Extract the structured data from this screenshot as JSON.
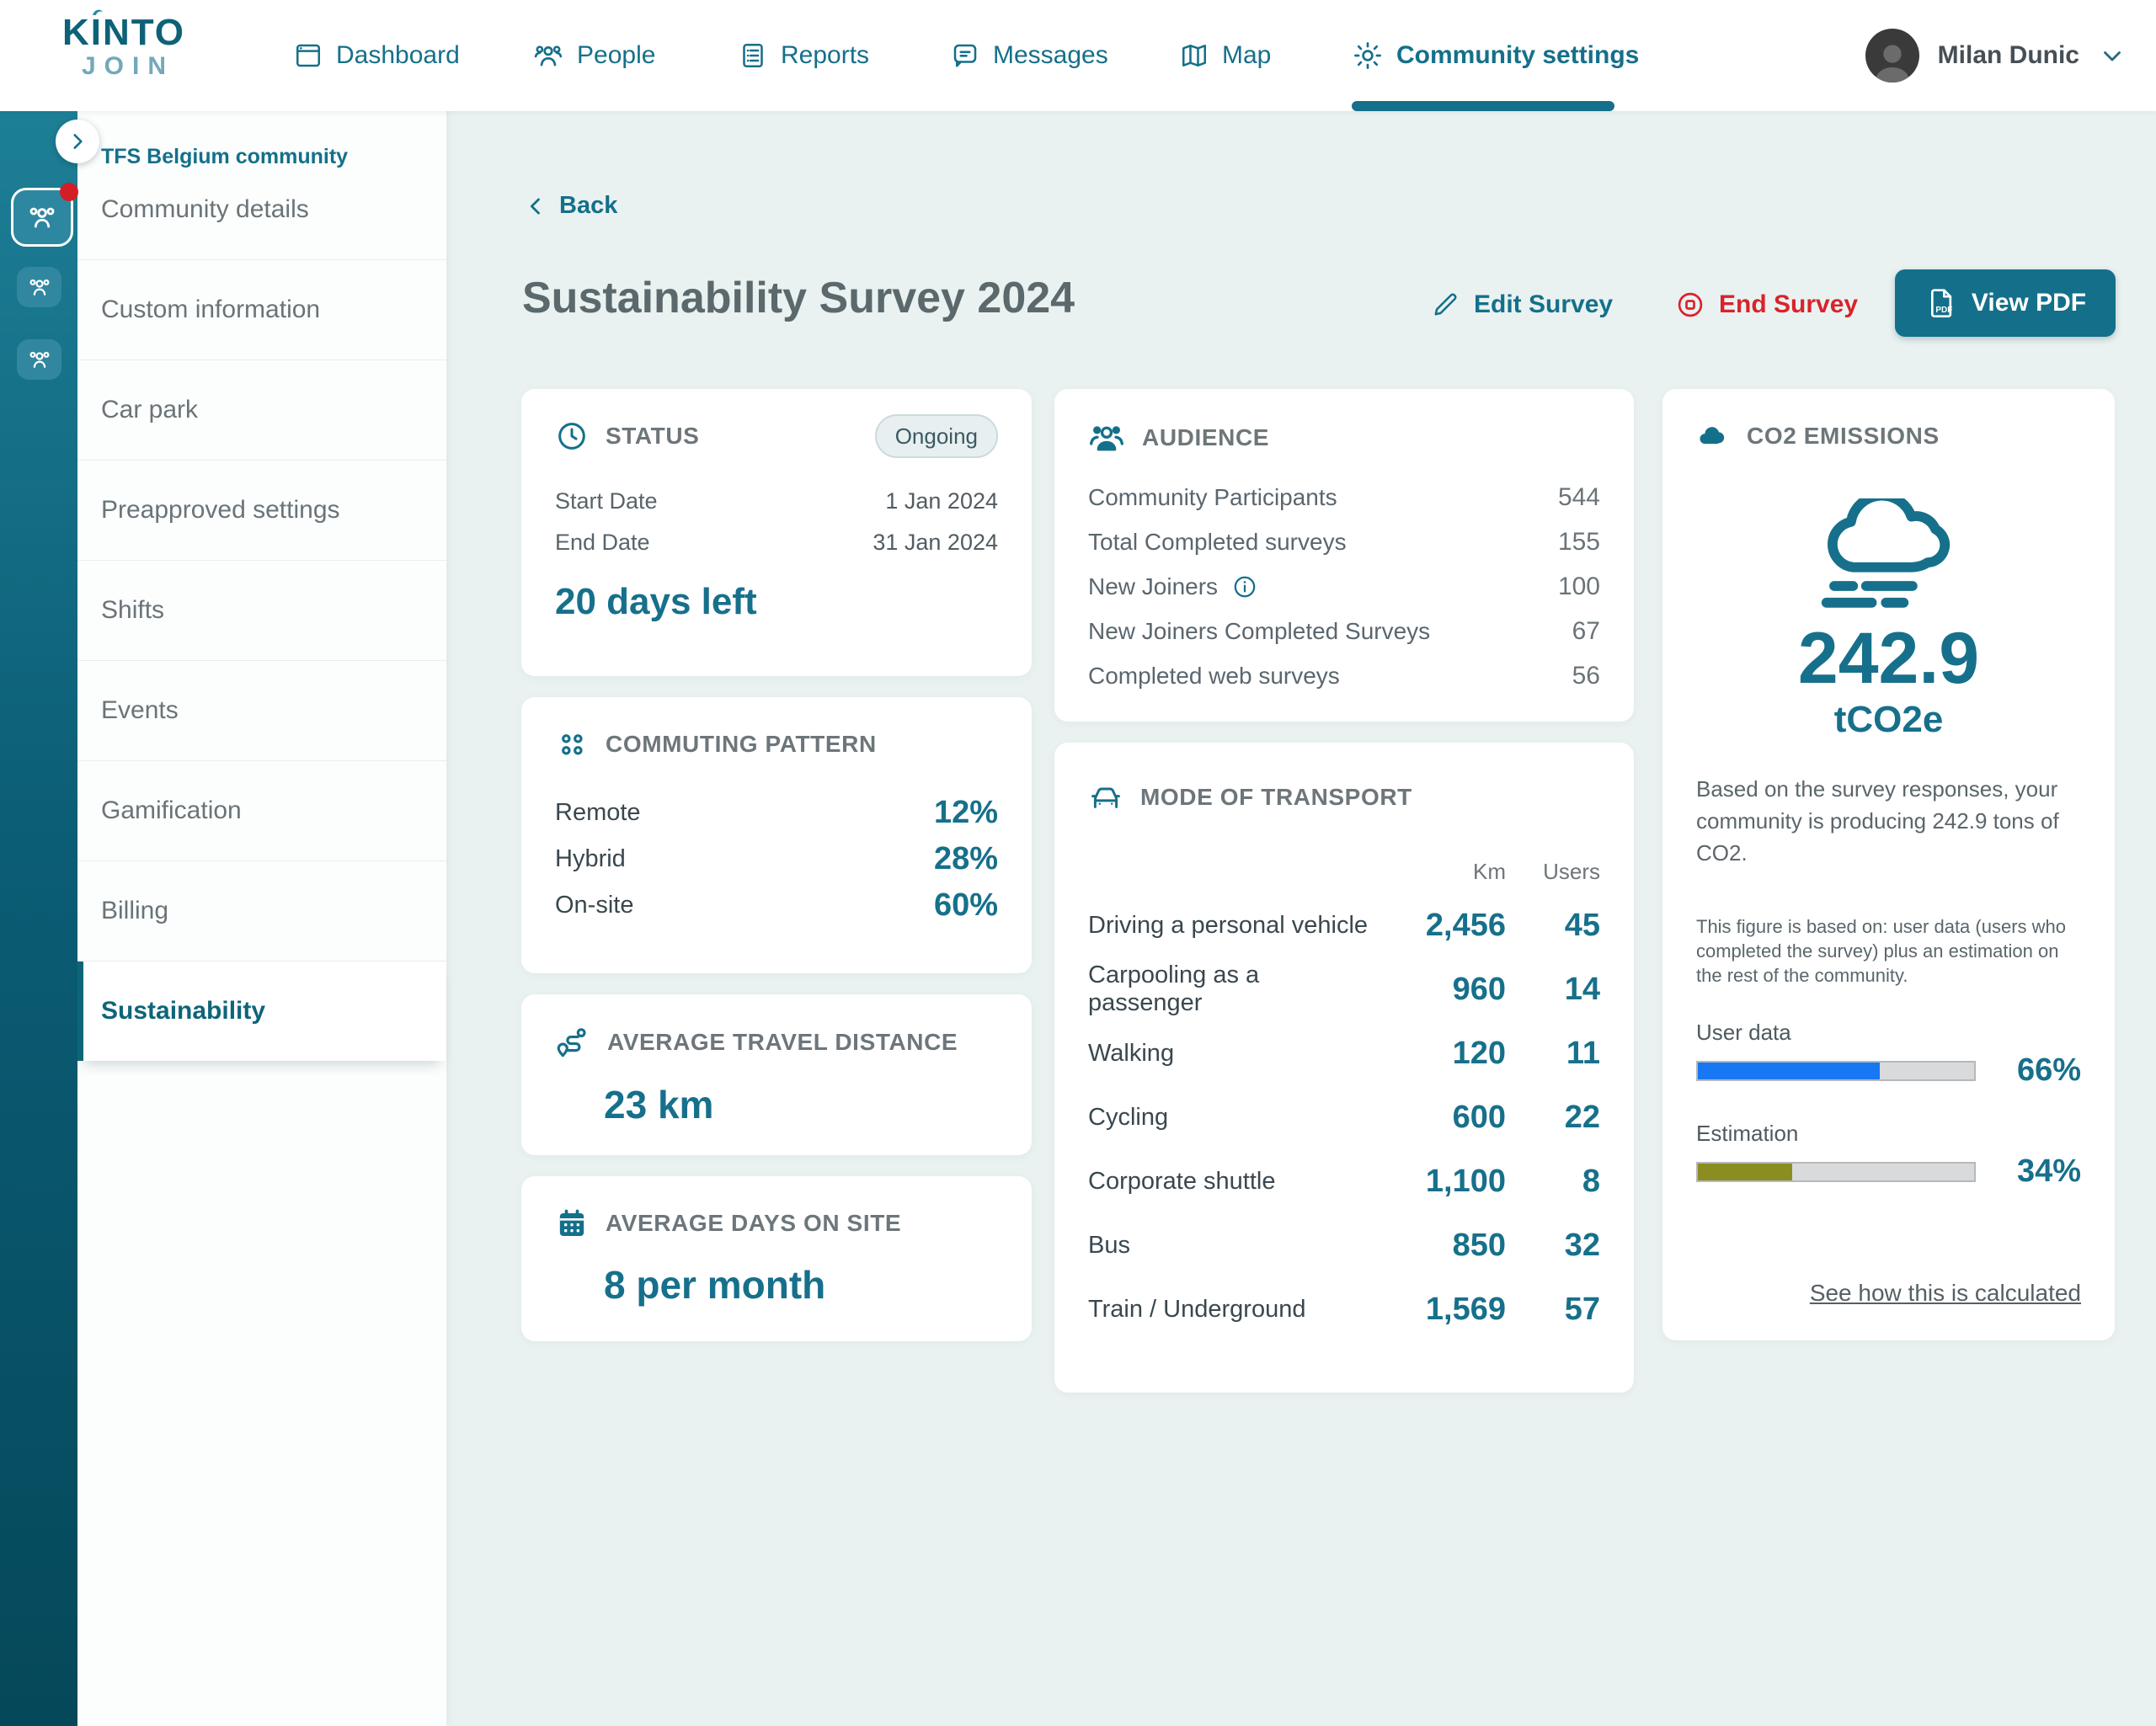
{
  "brand": {
    "line1": "KINTO",
    "line2": "JOIN"
  },
  "nav": {
    "items": [
      "Dashboard",
      "People",
      "Reports",
      "Messages",
      "Map",
      "Community settings"
    ],
    "active": "Community settings"
  },
  "user": {
    "name": "Milan Dunic"
  },
  "sidebar": {
    "community": "TFS Belgium community",
    "items": [
      "Community details",
      "Custom information",
      "Car park",
      "Preapproved settings",
      "Shifts",
      "Events",
      "Gamification",
      "Billing",
      "Sustainability"
    ],
    "active": "Sustainability"
  },
  "page": {
    "back": "Back",
    "title": "Sustainability Survey 2024",
    "edit": "Edit Survey",
    "end": "End Survey",
    "view_pdf": "View PDF"
  },
  "status": {
    "title": "STATUS",
    "badge": "Ongoing",
    "rows": [
      {
        "label": "Start Date",
        "value": "1 Jan 2024"
      },
      {
        "label": "End Date",
        "value": "31 Jan 2024"
      }
    ],
    "highlight": "20 days left"
  },
  "commuting": {
    "title": "COMMUTING PATTERN",
    "rows": [
      {
        "label": "Remote",
        "value": "12%"
      },
      {
        "label": "Hybrid",
        "value": "28%"
      },
      {
        "label": "On-site",
        "value": "60%"
      }
    ]
  },
  "travel": {
    "title": "AVERAGE TRAVEL DISTANCE",
    "value": "23 km"
  },
  "days": {
    "title": "AVERAGE DAYS ON SITE",
    "value": "8 per month"
  },
  "audience": {
    "title": "AUDIENCE",
    "rows": [
      {
        "label": "Community Participants",
        "value": "544"
      },
      {
        "label": "Total Completed surveys",
        "value": "155"
      },
      {
        "label": "New Joiners",
        "value": "100"
      },
      {
        "label": "New Joiners Completed Surveys",
        "value": "67"
      },
      {
        "label": "Completed web surveys",
        "value": "56"
      }
    ]
  },
  "transport": {
    "title": "MODE OF TRANSPORT",
    "columns": {
      "km": "Km",
      "users": "Users"
    },
    "rows": [
      {
        "label": "Driving a personal vehicle",
        "km": "2,456",
        "users": "45"
      },
      {
        "label": "Carpooling as a passenger",
        "km": "960",
        "users": "14"
      },
      {
        "label": "Walking",
        "km": "120",
        "users": "11"
      },
      {
        "label": "Cycling",
        "km": "600",
        "users": "22"
      },
      {
        "label": "Corporate shuttle",
        "km": "1,100",
        "users": "8"
      },
      {
        "label": "Bus",
        "km": "850",
        "users": "32"
      },
      {
        "label": "Train / Underground",
        "km": "1,569",
        "users": "57"
      }
    ]
  },
  "co2": {
    "title": "CO2 EMISSIONS",
    "value": "242.9",
    "unit": "tCO2e",
    "description": "Based on the survey responses, your community is producing 242.9 tons of CO2.",
    "note": "This figure is based on: user data  (users who completed the survey) plus an estimation on the rest of the community.",
    "bars": [
      {
        "label": "User data",
        "percent": "66%",
        "value": 66,
        "color": "#1877f2"
      },
      {
        "label": "Estimation",
        "percent": "34%",
        "value": 34,
        "color": "#8b8d21"
      }
    ],
    "link": "See how this is calculated"
  },
  "colors": {
    "accent": "#14708a",
    "danger": "#d9232b",
    "user_data_bar": "#1877f2",
    "estimation_bar": "#8b8d21"
  }
}
